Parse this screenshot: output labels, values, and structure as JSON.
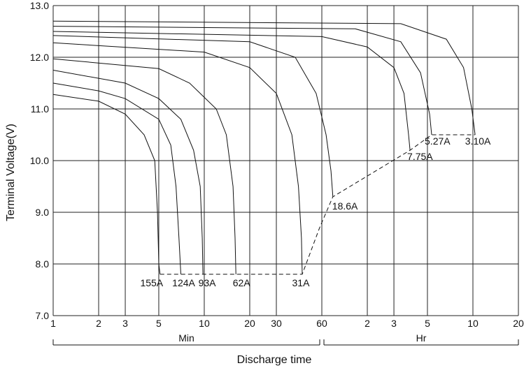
{
  "chart_data": {
    "type": "line",
    "title": "",
    "xlabel": "Discharge time",
    "ylabel": "Terminal Voltage(V)",
    "x_scale": "log",
    "xlim_minutes": [
      1,
      1200
    ],
    "ylim": [
      7.0,
      13.0
    ],
    "grid": true,
    "y_ticks": [
      "7.0",
      "8.0",
      "9.0",
      "10.0",
      "11.0",
      "12.0",
      "13.0"
    ],
    "x_ticks": [
      {
        "minutes": 1,
        "label": "1"
      },
      {
        "minutes": 2,
        "label": "2"
      },
      {
        "minutes": 3,
        "label": "3"
      },
      {
        "minutes": 5,
        "label": "5"
      },
      {
        "minutes": 10,
        "label": "10"
      },
      {
        "minutes": 20,
        "label": "20"
      },
      {
        "minutes": 30,
        "label": "30"
      },
      {
        "minutes": 60,
        "label": "60"
      },
      {
        "minutes": 120,
        "label": "2"
      },
      {
        "minutes": 180,
        "label": "3"
      },
      {
        "minutes": 300,
        "label": "5"
      },
      {
        "minutes": 600,
        "label": "10"
      },
      {
        "minutes": 1200,
        "label": "20"
      }
    ],
    "unit_groups": [
      {
        "label": "Min",
        "from_minutes": 1,
        "to_minutes": 60
      },
      {
        "label": "Hr",
        "from_minutes": 60,
        "to_minutes": 1200
      }
    ],
    "series": [
      {
        "label": "155A",
        "points": [
          [
            1,
            11.28
          ],
          [
            2,
            11.15
          ],
          [
            3,
            10.9
          ],
          [
            4,
            10.5
          ],
          [
            4.7,
            10.0
          ],
          [
            4.9,
            9.0
          ],
          [
            5.0,
            8.0
          ],
          [
            5.1,
            7.8
          ]
        ]
      },
      {
        "label": "124A",
        "points": [
          [
            1,
            11.5
          ],
          [
            2,
            11.35
          ],
          [
            3,
            11.2
          ],
          [
            5,
            10.8
          ],
          [
            6,
            10.3
          ],
          [
            6.5,
            9.5
          ],
          [
            6.8,
            8.5
          ],
          [
            7.0,
            7.8
          ]
        ]
      },
      {
        "label": "93A",
        "points": [
          [
            1,
            11.75
          ],
          [
            3,
            11.5
          ],
          [
            5,
            11.2
          ],
          [
            7,
            10.8
          ],
          [
            8.5,
            10.2
          ],
          [
            9.4,
            9.5
          ],
          [
            9.7,
            8.5
          ],
          [
            9.8,
            7.8
          ]
        ]
      },
      {
        "label": "62A",
        "points": [
          [
            1,
            11.97
          ],
          [
            5,
            11.78
          ],
          [
            8,
            11.5
          ],
          [
            12,
            11.0
          ],
          [
            14,
            10.5
          ],
          [
            15.5,
            9.5
          ],
          [
            16,
            8.5
          ],
          [
            16.2,
            7.8
          ]
        ]
      },
      {
        "label": "31A",
        "points": [
          [
            1,
            12.28
          ],
          [
            10,
            12.1
          ],
          [
            20,
            11.8
          ],
          [
            30,
            11.3
          ],
          [
            38,
            10.5
          ],
          [
            42,
            9.5
          ],
          [
            44,
            8.5
          ],
          [
            44.5,
            7.8
          ]
        ]
      },
      {
        "label": "18.6A",
        "points": [
          [
            1,
            12.42
          ],
          [
            20,
            12.3
          ],
          [
            40,
            12.0
          ],
          [
            55,
            11.3
          ],
          [
            64,
            10.5
          ],
          [
            69,
            9.8
          ],
          [
            71,
            9.3
          ]
        ]
      },
      {
        "label": "7.75A",
        "points": [
          [
            1,
            12.5
          ],
          [
            60,
            12.4
          ],
          [
            120,
            12.2
          ],
          [
            180,
            11.8
          ],
          [
            210,
            11.3
          ],
          [
            225,
            10.5
          ],
          [
            230,
            10.2
          ]
        ]
      },
      {
        "label": "5.27A",
        "points": [
          [
            1,
            12.6
          ],
          [
            100,
            12.55
          ],
          [
            200,
            12.3
          ],
          [
            270,
            11.7
          ],
          [
            310,
            10.9
          ],
          [
            320,
            10.5
          ]
        ]
      },
      {
        "label": "3.10A",
        "points": [
          [
            1,
            12.7
          ],
          [
            200,
            12.65
          ],
          [
            400,
            12.35
          ],
          [
            520,
            11.8
          ],
          [
            590,
            11.0
          ],
          [
            620,
            10.5
          ]
        ]
      }
    ],
    "cutoff_line": {
      "points": [
        [
          5.1,
          7.8
        ],
        [
          44.5,
          7.8
        ],
        [
          58,
          8.7
        ],
        [
          71,
          9.3
        ],
        [
          230,
          10.2
        ],
        [
          320,
          10.5
        ],
        [
          620,
          10.5
        ]
      ]
    }
  }
}
